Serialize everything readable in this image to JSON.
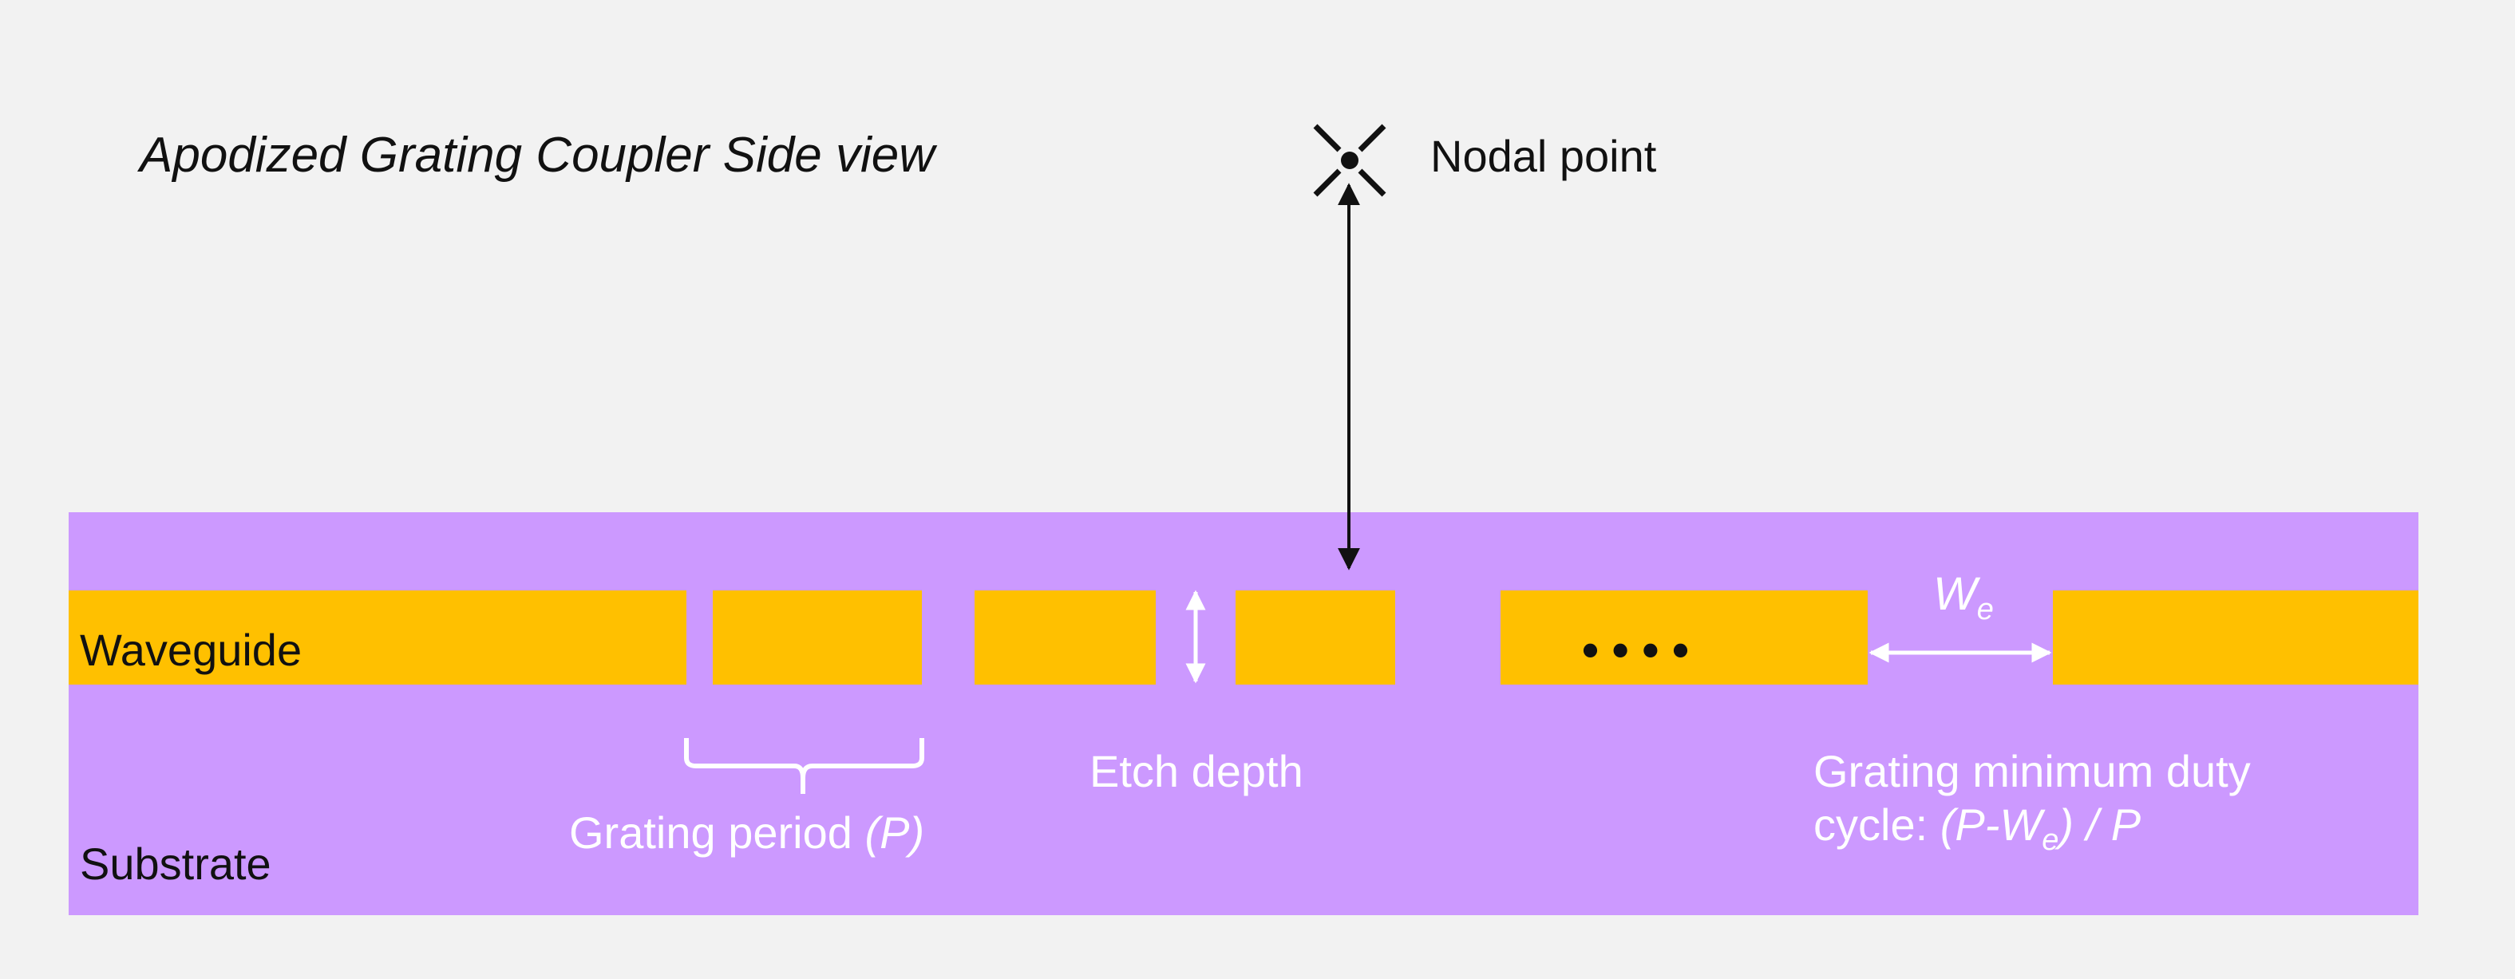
{
  "title": "Apodized Grating Coupler Side view",
  "nodal_point_label": "Nodal point",
  "waveguide_label": "Waveguide",
  "substrate_label": "Substrate",
  "grating_period": {
    "text": "Grating period ",
    "symbol": "(P)"
  },
  "etch_depth_label": "Etch depth",
  "we_label": {
    "main": "W",
    "sub": "e"
  },
  "duty_cycle": {
    "line1": "Grating minimum duty",
    "line2_prefix": "cycle: ",
    "open_paren": "(",
    "P1": "P",
    "minus": "-",
    "W": "W",
    "sub": "e",
    "close_paren": ")",
    "slash": " / ",
    "P2": "P"
  },
  "ellipsis": "• • • •",
  "colors": {
    "background": "#f2f2f2",
    "substrate": "#cc99ff",
    "waveguide": "#ffc000",
    "annotation": "#ffffff",
    "text": "#111111"
  }
}
